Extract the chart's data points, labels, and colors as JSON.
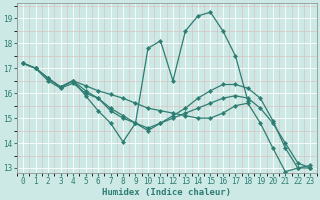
{
  "xlabel": "Humidex (Indice chaleur)",
  "background_color": "#cce9e5",
  "grid_color_major": "#ffffff",
  "grid_color_minor": "#e8c8c8",
  "line_color": "#2e7d72",
  "xlim": [
    -0.5,
    23.5
  ],
  "ylim": [
    12.8,
    19.6
  ],
  "yticks": [
    13,
    14,
    15,
    16,
    17,
    18,
    19
  ],
  "xticks": [
    0,
    1,
    2,
    3,
    4,
    5,
    6,
    7,
    8,
    9,
    10,
    11,
    12,
    13,
    14,
    15,
    16,
    17,
    18,
    19,
    20,
    21,
    22,
    23
  ],
  "lines": [
    {
      "x": [
        0,
        1,
        2,
        3,
        4,
        5,
        6,
        7,
        8,
        9,
        10,
        11,
        12,
        13,
        14,
        15,
        16,
        17,
        18,
        19,
        20,
        21,
        22,
        23
      ],
      "y": [
        17.2,
        17.0,
        16.6,
        16.25,
        16.5,
        15.9,
        15.3,
        14.8,
        14.05,
        14.8,
        17.8,
        18.1,
        16.5,
        18.5,
        19.1,
        19.25,
        18.5,
        17.5,
        15.7,
        null,
        null,
        null,
        null,
        null
      ]
    },
    {
      "x": [
        0,
        1,
        2,
        3,
        4,
        5,
        6,
        7,
        8,
        9,
        10,
        11,
        12,
        13,
        14,
        15,
        16,
        17,
        18,
        19,
        20,
        21,
        22,
        23
      ],
      "y": [
        17.2,
        17.0,
        16.6,
        16.25,
        16.5,
        16.3,
        16.1,
        15.95,
        15.8,
        15.6,
        15.4,
        15.3,
        15.2,
        15.1,
        15.0,
        15.0,
        15.2,
        15.5,
        15.6,
        14.8,
        13.8,
        12.85,
        13.0,
        13.1
      ]
    },
    {
      "x": [
        0,
        1,
        2,
        3,
        4,
        5,
        6,
        7,
        8,
        9,
        10,
        11,
        12,
        13,
        14,
        15,
        16,
        17,
        18,
        19,
        20,
        21,
        22,
        23
      ],
      "y": [
        17.2,
        17.0,
        16.6,
        16.25,
        16.5,
        16.1,
        15.8,
        15.4,
        15.1,
        14.8,
        14.6,
        14.8,
        15.1,
        15.4,
        15.8,
        16.1,
        16.35,
        16.35,
        16.2,
        15.8,
        14.9,
        13.8,
        13.0,
        13.0
      ]
    },
    {
      "x": [
        0,
        1,
        2,
        3,
        4,
        5,
        6,
        7,
        8,
        9,
        10,
        11,
        12,
        13,
        14,
        15,
        16,
        17,
        18,
        19,
        20,
        21,
        22,
        23
      ],
      "y": [
        17.2,
        17.0,
        16.5,
        16.2,
        16.4,
        16.0,
        15.8,
        15.3,
        15.0,
        14.8,
        14.5,
        14.8,
        15.0,
        15.2,
        15.4,
        15.6,
        15.8,
        15.9,
        15.8,
        15.4,
        14.8,
        14.0,
        13.2,
        13.0
      ]
    }
  ]
}
